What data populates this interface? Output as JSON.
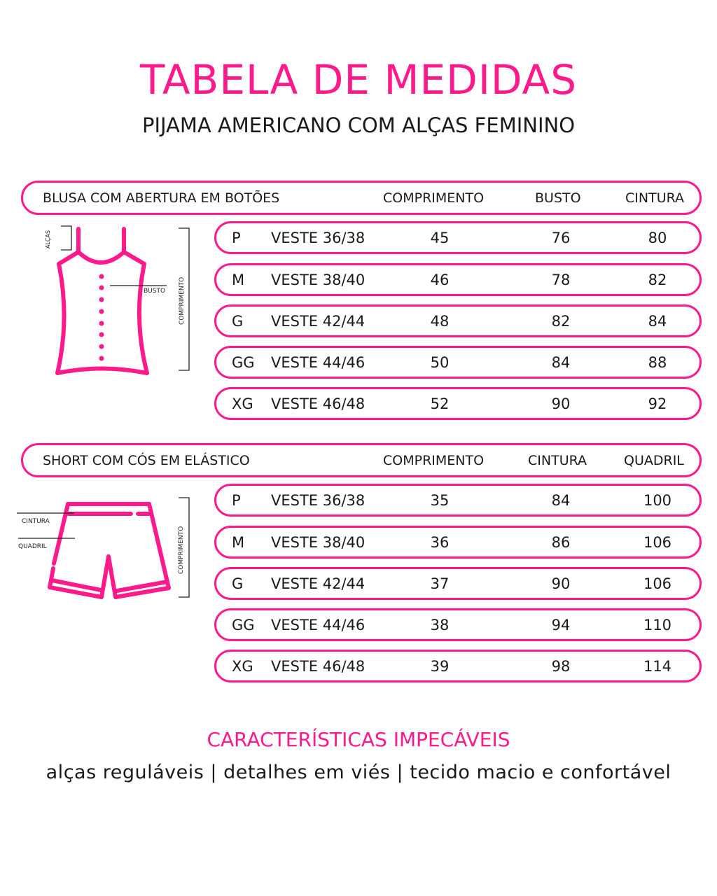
{
  "title": "TABELA DE MEDIDAS",
  "subtitle": "PIJAMA AMERICANO COM ALÇAS FEMININO",
  "colors": {
    "accent": "#ff1a8c",
    "text": "#1a1a1a"
  },
  "blusa": {
    "title": "BLUSA COM ABERTURA EM BOTÕES",
    "columns": [
      "COMPRIMENTO",
      "BUSTO",
      "CINTURA"
    ],
    "diagram_labels": {
      "alcas": "ALÇAS",
      "busto": "BUSTO",
      "comprimento": "COMPRIMENTO"
    },
    "rows": [
      {
        "size": "P",
        "veste": "VESTE 36/38",
        "values": [
          "45",
          "76",
          "80"
        ]
      },
      {
        "size": "M",
        "veste": "VESTE 38/40",
        "values": [
          "46",
          "78",
          "82"
        ]
      },
      {
        "size": "G",
        "veste": "VESTE 42/44",
        "values": [
          "48",
          "82",
          "84"
        ]
      },
      {
        "size": "GG",
        "veste": "VESTE 44/46",
        "values": [
          "50",
          "84",
          "88"
        ]
      },
      {
        "size": "XG",
        "veste": "VESTE 46/48",
        "values": [
          "52",
          "90",
          "92"
        ]
      }
    ]
  },
  "short": {
    "title": "SHORT COM CÓS EM ELÁSTICO",
    "columns": [
      "COMPRIMENTO",
      "CINTURA",
      "QUADRIL"
    ],
    "diagram_labels": {
      "cintura": "CINTURA",
      "quadril": "QUADRIL",
      "comprimento": "COMPRIMENTO"
    },
    "rows": [
      {
        "size": "P",
        "veste": "VESTE 36/38",
        "values": [
          "35",
          "84",
          "100"
        ]
      },
      {
        "size": "M",
        "veste": "VESTE 38/40",
        "values": [
          "36",
          "86",
          "106"
        ]
      },
      {
        "size": "G",
        "veste": "VESTE 42/44",
        "values": [
          "37",
          "90",
          "106"
        ]
      },
      {
        "size": "GG",
        "veste": "VESTE 44/46",
        "values": [
          "38",
          "94",
          "110"
        ]
      },
      {
        "size": "XG",
        "veste": "VESTE 46/48",
        "values": [
          "39",
          "98",
          "114"
        ]
      }
    ]
  },
  "features": {
    "title": "CARACTERÍSTICAS IMPECÁVEIS",
    "text": "alças reguláveis | detalhes em viés | tecido macio e confortável"
  }
}
